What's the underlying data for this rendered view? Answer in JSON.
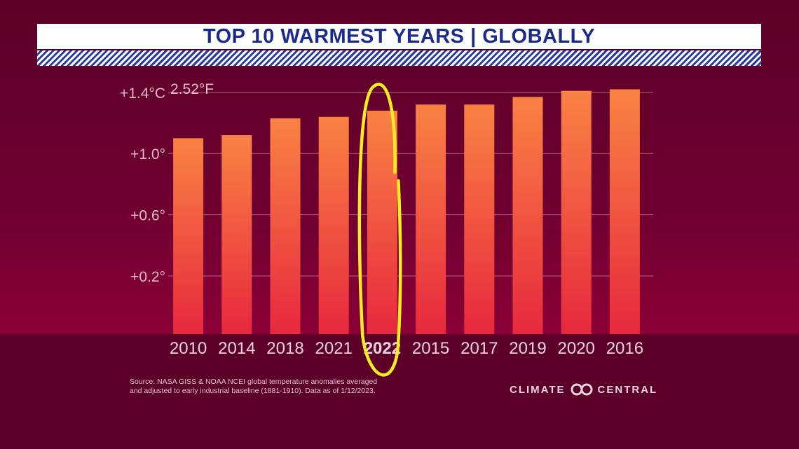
{
  "header": {
    "title": "TOP 10 WARMEST YEARS | GLOBALLY"
  },
  "chart_data": {
    "type": "bar",
    "title": "TOP 10 WARMEST YEARS | GLOBALLY",
    "categories": [
      "2010",
      "2014",
      "2018",
      "2021",
      "2022",
      "2015",
      "2017",
      "2019",
      "2020",
      "2016"
    ],
    "values": [
      1.1,
      1.12,
      1.23,
      1.24,
      1.28,
      1.32,
      1.32,
      1.37,
      1.41,
      1.42
    ],
    "yticks": [
      "+0.2°",
      "+0.6°",
      "+1.0°",
      "+1.4°C"
    ],
    "ytick_values": [
      0.2,
      0.6,
      1.0,
      1.4
    ],
    "top_tick_secondary": "2.52°F",
    "ylim": [
      -0.18,
      1.5
    ],
    "highlighted_category": "2022",
    "grid": true,
    "colors": {
      "bar_top": "#f98243",
      "bar_bottom": "#e8283e",
      "highlight": "#f4ee20"
    }
  },
  "footer": {
    "source_line1": "Source: NASA GISS & NOAA NCEI global temperature anomalies averaged",
    "source_line2": "and adjusted to early industrial baseline (1881-1910). Data as of 1/12/2023.",
    "logo_left": "CLIMATE",
    "logo_right": "CENTRAL",
    "logo_icon": "infinity-icon"
  }
}
